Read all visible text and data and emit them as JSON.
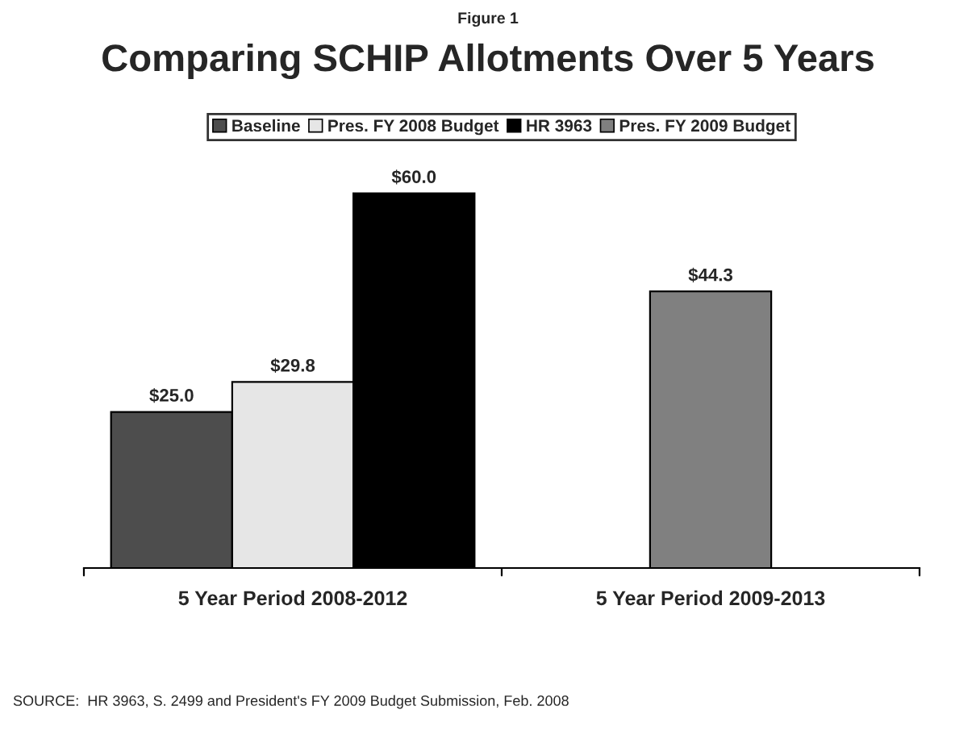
{
  "chart_data": {
    "type": "bar",
    "title": "Comparing SCHIP Allotments Over 5 Years",
    "subtitle": "Figure 1",
    "categories": [
      "5 Year Period 2008-2012",
      "5 Year Period 2009-2013"
    ],
    "series": [
      {
        "name": "Baseline",
        "color": "#4d4d4d",
        "values": [
          25.0,
          null
        ],
        "value_labels": [
          "$25.0",
          null
        ]
      },
      {
        "name": "Pres. FY 2008 Budget",
        "color": "#e6e6e6",
        "values": [
          29.8,
          null
        ],
        "value_labels": [
          "$29.8",
          null
        ]
      },
      {
        "name": "HR 3963",
        "color": "#000000",
        "values": [
          60.0,
          null
        ],
        "value_labels": [
          "$60.0",
          null
        ]
      },
      {
        "name": "Pres. FY 2009 Budget",
        "color": "#808080",
        "values": [
          null,
          44.3
        ],
        "value_labels": [
          null,
          "$44.3"
        ]
      }
    ],
    "legend": "top",
    "grid": false,
    "annotations": [
      "SOURCE:  HR 3963, S. 2499 and President's FY 2009 Budget Submission, Feb. 2008"
    ]
  }
}
